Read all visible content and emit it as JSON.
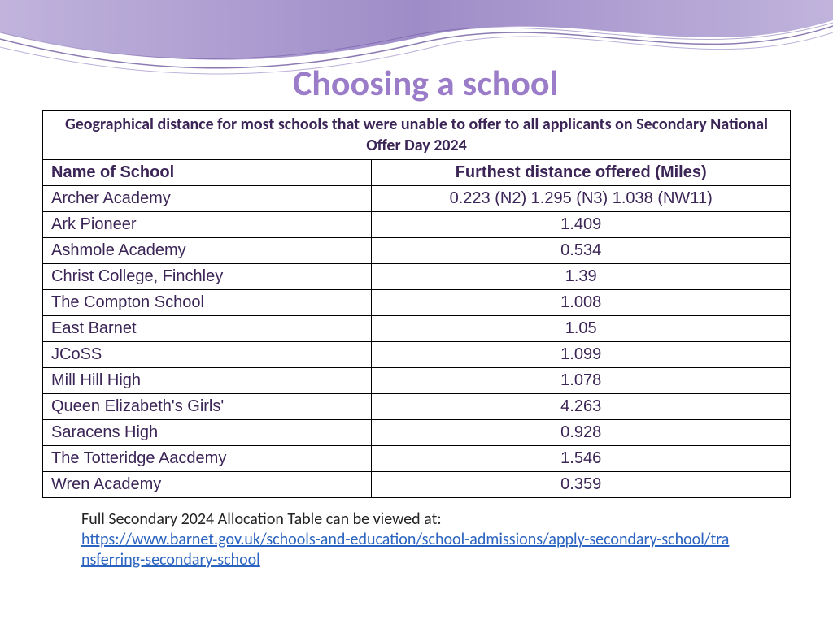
{
  "title": "Choosing a school",
  "title_color": "#9b7cc8",
  "title_fontsize": 44,
  "wave": {
    "fill_color": "#9d8cc8",
    "stroke_color": "#6a51a0"
  },
  "table": {
    "caption": "Geographical distance for most schools that were unable to offer to all applicants  on Secondary National Offer Day 2024",
    "caption_color": "#3b2456",
    "columns": [
      "Name of School",
      "Furthest distance offered (Miles)"
    ],
    "rows": [
      [
        "Archer Academy",
        "0.223 (N2)    1.295 (N3)    1.038 (NW11)"
      ],
      [
        "Ark Pioneer",
        "1.409"
      ],
      [
        "Ashmole Academy",
        "0.534"
      ],
      [
        "Christ College, Finchley",
        "1.39"
      ],
      [
        "The Compton School",
        "1.008"
      ],
      [
        "East Barnet",
        "1.05"
      ],
      [
        "JCoSS",
        "1.099"
      ],
      [
        "Mill Hill High",
        "1.078"
      ],
      [
        "Queen Elizabeth's Girls'",
        "4.263"
      ],
      [
        "Saracens High",
        "0.928"
      ],
      [
        "The Totteridge Aacdemy",
        "1.546"
      ],
      [
        "Wren Academy",
        "0.359"
      ]
    ],
    "border_color": "#000000",
    "text_color": "#3b2456",
    "header_fontsize": 22,
    "cell_fontsize": 20,
    "column_widths_pct": [
      44,
      56
    ],
    "column_align": [
      "left",
      "center"
    ]
  },
  "footnote": {
    "text": "Full Secondary 2024 Allocation Table can be viewed at:",
    "link_text": "https://www.barnet.gov.uk/schools-and-education/school-admissions/apply-secondary-school/transferring-secondary-school",
    "link_color": "#2a63c0"
  }
}
